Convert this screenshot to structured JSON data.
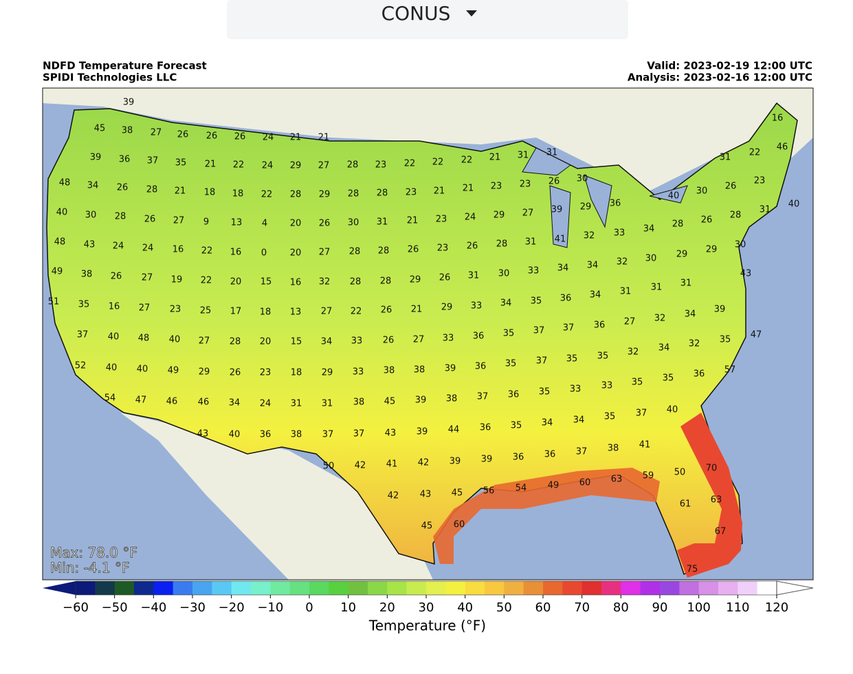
{
  "dropdown": {
    "label": "CONUS"
  },
  "header": {
    "title": "NDFD Temperature Forecast",
    "subtitle": "SPIDI Technologies LLC",
    "valid": "Valid: 2023-02-19 12:00 UTC",
    "analysis": "Analysis: 2023-02-16 12:00 UTC"
  },
  "stats": {
    "max": "Max: 78.0 °F",
    "min": "Min: -4.1 °F"
  },
  "map_labels": [
    39,
    45,
    38,
    27,
    26,
    26,
    26,
    24,
    21,
    21,
    39,
    36,
    37,
    35,
    21,
    22,
    24,
    29,
    27,
    28,
    23,
    22,
    22,
    22,
    21,
    31,
    31,
    48,
    34,
    26,
    28,
    21,
    18,
    18,
    22,
    28,
    29,
    28,
    28,
    23,
    21,
    21,
    23,
    23,
    26,
    30,
    40,
    30,
    28,
    26,
    27,
    9,
    13,
    4,
    20,
    26,
    30,
    31,
    21,
    23,
    24,
    29,
    27,
    39,
    29,
    36,
    40,
    30,
    26,
    23,
    22,
    16,
    46,
    31,
    40,
    31,
    28,
    26,
    28,
    34,
    33,
    48,
    43,
    24,
    24,
    16,
    22,
    16,
    0,
    20,
    27,
    28,
    28,
    26,
    23,
    26,
    28,
    31,
    41,
    32,
    49,
    38,
    26,
    27,
    19,
    22,
    20,
    15,
    16,
    32,
    28,
    28,
    29,
    26,
    31,
    30,
    33,
    34,
    34,
    32,
    30,
    29,
    29,
    30,
    43,
    51,
    35,
    16,
    27,
    23,
    25,
    17,
    18,
    13,
    27,
    22,
    26,
    21,
    29,
    33,
    34,
    35,
    36,
    34,
    31,
    31,
    31,
    39,
    34,
    32,
    27,
    36,
    37,
    37,
    35,
    36,
    33,
    27,
    26,
    33,
    34,
    15,
    20,
    28,
    27,
    40,
    48,
    40,
    37,
    47,
    35,
    32,
    34,
    32,
    35,
    35,
    37,
    35,
    36,
    39,
    38,
    38,
    33,
    29,
    18,
    23,
    26,
    29,
    49,
    40,
    40,
    52,
    57,
    36,
    35,
    35,
    33,
    33,
    35,
    36,
    37,
    38,
    39,
    45,
    38,
    31,
    31,
    24,
    34,
    46,
    46,
    47,
    54,
    40,
    37,
    35,
    34,
    34,
    35,
    36,
    44,
    39,
    43,
    37,
    37,
    38,
    36,
    40,
    43,
    41,
    38,
    37,
    36,
    36,
    39,
    39,
    42,
    41,
    42,
    50,
    70,
    50,
    59,
    63,
    60,
    49,
    54,
    56,
    45,
    43,
    42,
    63,
    61,
    60,
    45,
    67,
    75
  ],
  "colorbar": {
    "label": "Temperature (°F)",
    "ticks": [
      -60,
      -50,
      -40,
      -30,
      -20,
      -10,
      0,
      10,
      20,
      30,
      40,
      50,
      60,
      70,
      80,
      90,
      100,
      110,
      120
    ],
    "colors": [
      "#0c1a7a",
      "#123a4a",
      "#1e5a25",
      "#0e2a8c",
      "#0a20f0",
      "#3a7cf0",
      "#4aa4f0",
      "#5ac8f4",
      "#70e8f0",
      "#78f0cc",
      "#70eaa0",
      "#66e080",
      "#5ad860",
      "#58d040",
      "#72c040",
      "#8ad848",
      "#a8e448",
      "#c8ec50",
      "#e4f050",
      "#f4f040",
      "#f8dc40",
      "#f8c840",
      "#f0b040",
      "#e89038",
      "#e86830",
      "#e84830",
      "#e03030",
      "#e83080",
      "#e030e8",
      "#b030e8",
      "#9848e0",
      "#c070e0",
      "#d890e8",
      "#e8b0f0",
      "#f0d0f8",
      "#ffffff"
    ]
  }
}
